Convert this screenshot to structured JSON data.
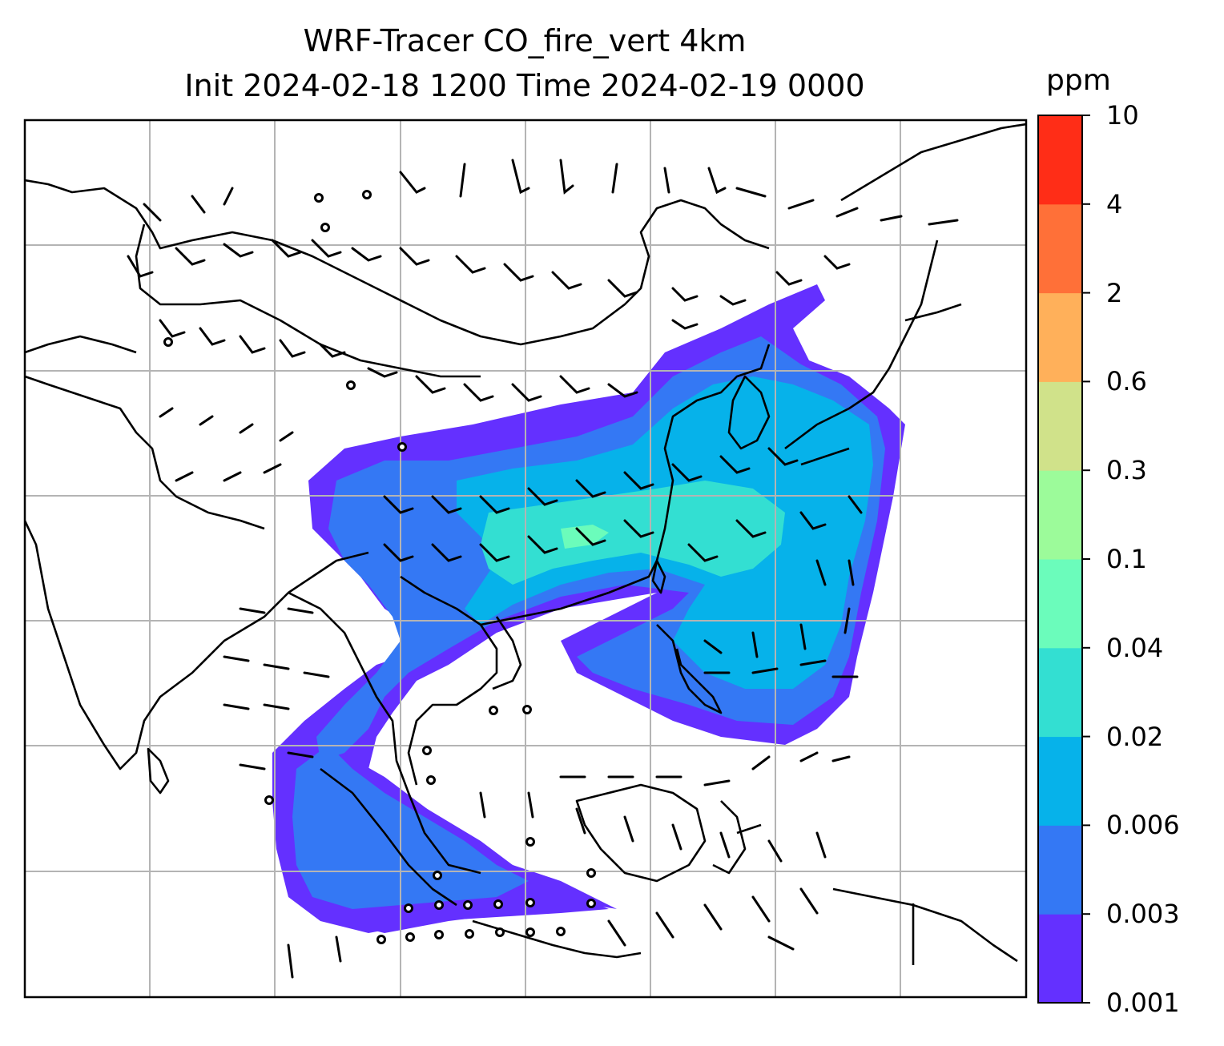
{
  "title": {
    "line1": "WRF-Tracer CO_fire_vert 4km",
    "line2": "Init 2024-02-18 1200 Time 2024-02-19 0000"
  },
  "colorbar": {
    "unit": "ppm",
    "levels": [
      "0.001",
      "0.003",
      "0.006",
      "0.02",
      "0.04",
      "0.1",
      "0.3",
      "0.6",
      "2",
      "4",
      "10"
    ],
    "colors": [
      "#6430ff",
      "#3478f4",
      "#06b2ea",
      "#33dfd2",
      "#6bfcbb",
      "#9cfb9a",
      "#d0e28a",
      "#ffb05a",
      "#ff7038",
      "#ff2d17"
    ]
  },
  "map": {
    "projection": "regional",
    "gridlines": true,
    "plume_colors": {
      "low": "#6430ff",
      "mid": "#3478f4",
      "cyan": "#06b2ea",
      "teal": "#33dfd2",
      "mint": "#6bfcbb"
    },
    "coastline_color": "#000000",
    "grid_color": "#b4b4b4",
    "wind_barb_color": "#000000"
  }
}
